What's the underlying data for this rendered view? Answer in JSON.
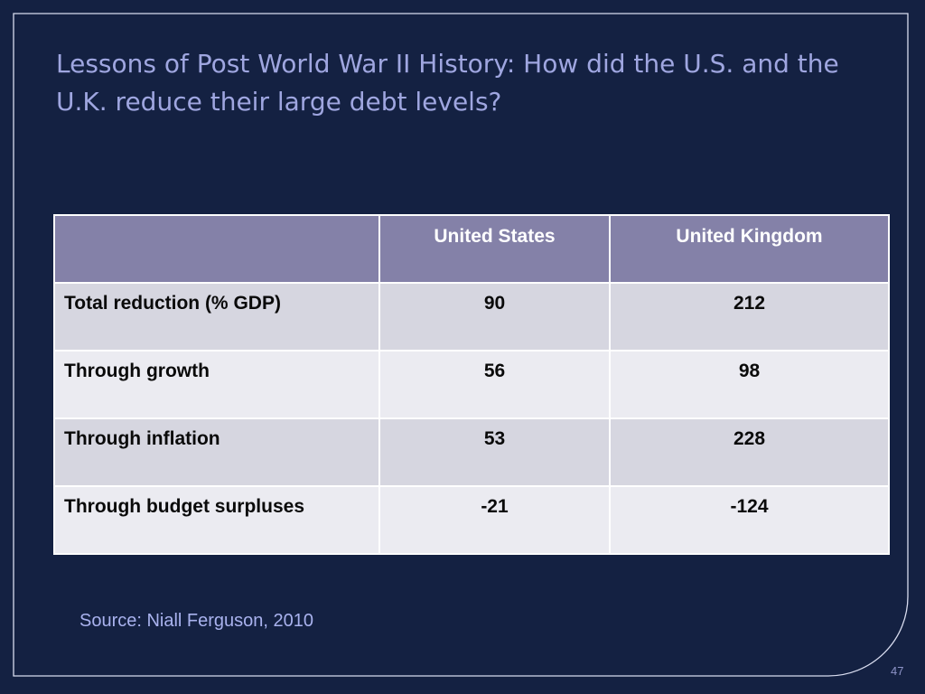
{
  "slide": {
    "title": "Lessons of Post World War II History: How did the U.S. and the U.K. reduce their large debt levels?",
    "source": "Source: Niall Ferguson, 2010",
    "page_number": "47"
  },
  "table": {
    "header": {
      "corner": "",
      "col1": "United States",
      "col2": "United Kingdom"
    },
    "rows": [
      {
        "label": "Total reduction (% GDP)",
        "us": "90",
        "uk": "212"
      },
      {
        "label": "Through growth",
        "us": "56",
        "uk": "98"
      },
      {
        "label": "Through inflation",
        "us": "53",
        "uk": "228"
      },
      {
        "label": "Through budget surpluses",
        "us": "-21",
        "uk": "-124"
      }
    ]
  },
  "colors": {
    "background": "#142142",
    "title": "#9fa6e0",
    "header_fill": "#8481a8",
    "row_odd": "#d6d6e0",
    "row_even": "#ebebf1",
    "source_text": "#a9b2ee"
  }
}
